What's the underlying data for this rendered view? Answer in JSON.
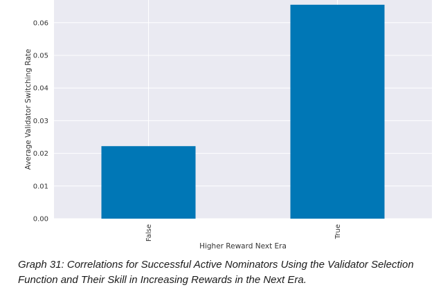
{
  "chart_data": {
    "type": "bar",
    "categories": [
      "False",
      "True"
    ],
    "values": [
      0.0222,
      0.0655
    ],
    "xlabel": "Higher Reward Next Era",
    "ylabel": "Average Validator Switching Rate",
    "ylim": [
      0,
      0.066
    ],
    "yticks": [
      "0.00",
      "0.01",
      "0.02",
      "0.03",
      "0.04",
      "0.05",
      "0.06"
    ],
    "grid": true,
    "bar_color": "#0077b6",
    "background_color": "#eaeaf2"
  },
  "caption": "Graph 31: Correlations for Successful Active Nominators Using the Validator Selection Function and Their Skill in Increasing Rewards in the Next Era."
}
